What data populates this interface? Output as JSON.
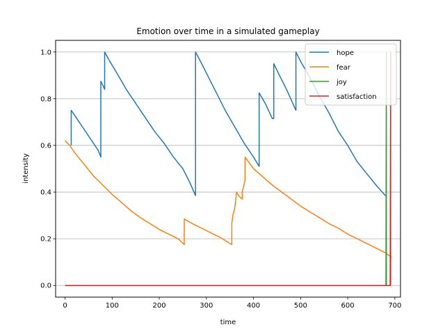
{
  "chart_data": {
    "type": "line",
    "title": "Emotion over time in a simulated gameplay",
    "xlabel": "time",
    "ylabel": "intensity",
    "xlim": [
      -20,
      712
    ],
    "ylim": [
      -0.05,
      1.05
    ],
    "xticks": [
      0,
      100,
      200,
      300,
      400,
      500,
      600,
      700
    ],
    "yticks": [
      0.0,
      0.2,
      0.4,
      0.6,
      0.8,
      1.0
    ],
    "xtick_labels": [
      "0",
      "100",
      "200",
      "300",
      "400",
      "500",
      "600",
      "700"
    ],
    "ytick_labels": [
      "0.0",
      "0.2",
      "0.4",
      "0.6",
      "0.8",
      "1.0"
    ],
    "grid": "horizontal",
    "legend_position": "top-right",
    "series": [
      {
        "name": "hope",
        "color": "#1f77b4",
        "x": [
          13,
          13,
          20,
          30,
          40,
          50,
          60,
          70,
          76,
          76,
          82,
          84,
          84,
          95,
          110,
          130,
          150,
          170,
          190,
          210,
          230,
          250,
          265,
          277,
          277,
          290,
          305,
          320,
          340,
          360,
          380,
          400,
          412,
          412,
          425,
          440,
          443,
          443,
          455,
          470,
          490,
          490,
          500,
          520,
          540,
          560,
          580,
          600,
          620,
          640,
          660,
          680
        ],
        "y": [
          0.6,
          0.75,
          0.73,
          0.7,
          0.67,
          0.64,
          0.61,
          0.58,
          0.55,
          0.875,
          0.85,
          0.84,
          1.0,
          0.96,
          0.91,
          0.84,
          0.78,
          0.72,
          0.66,
          0.61,
          0.55,
          0.5,
          0.44,
          0.385,
          1.0,
          0.95,
          0.89,
          0.83,
          0.75,
          0.68,
          0.61,
          0.55,
          0.51,
          0.825,
          0.78,
          0.715,
          0.715,
          0.95,
          0.9,
          0.84,
          0.75,
          1.0,
          0.96,
          0.89,
          0.81,
          0.74,
          0.66,
          0.6,
          0.53,
          0.48,
          0.43,
          0.385
        ]
      },
      {
        "name": "fear",
        "color": "#ff7f0e",
        "x": [
          0,
          10,
          20,
          40,
          60,
          80,
          100,
          120,
          140,
          160,
          180,
          200,
          220,
          240,
          253,
          253,
          270,
          290,
          310,
          330,
          354,
          354,
          356,
          360,
          362,
          364,
          370,
          376,
          376,
          382,
          382,
          400,
          420,
          440,
          460,
          480,
          500,
          520,
          540,
          560,
          580,
          600,
          620,
          640,
          660,
          680,
          693
        ],
        "y": [
          0.62,
          0.6,
          0.57,
          0.52,
          0.47,
          0.43,
          0.39,
          0.355,
          0.32,
          0.29,
          0.265,
          0.24,
          0.22,
          0.2,
          0.175,
          0.285,
          0.265,
          0.245,
          0.225,
          0.205,
          0.175,
          0.265,
          0.3,
          0.33,
          0.36,
          0.4,
          0.38,
          0.37,
          0.4,
          0.45,
          0.55,
          0.5,
          0.465,
          0.43,
          0.4,
          0.37,
          0.34,
          0.315,
          0.29,
          0.265,
          0.245,
          0.22,
          0.2,
          0.18,
          0.16,
          0.14,
          0.12
        ]
      },
      {
        "name": "joy",
        "color": "#2ca02c",
        "x": [
          0,
          681,
          682,
          682
        ],
        "y": [
          0.0,
          0.0,
          1.0,
          0.0
        ]
      },
      {
        "name": "satisfaction",
        "color": "#d62728",
        "x": [
          0,
          690,
          691,
          691
        ],
        "y": [
          0.0,
          0.0,
          1.0,
          0.0
        ]
      }
    ]
  }
}
